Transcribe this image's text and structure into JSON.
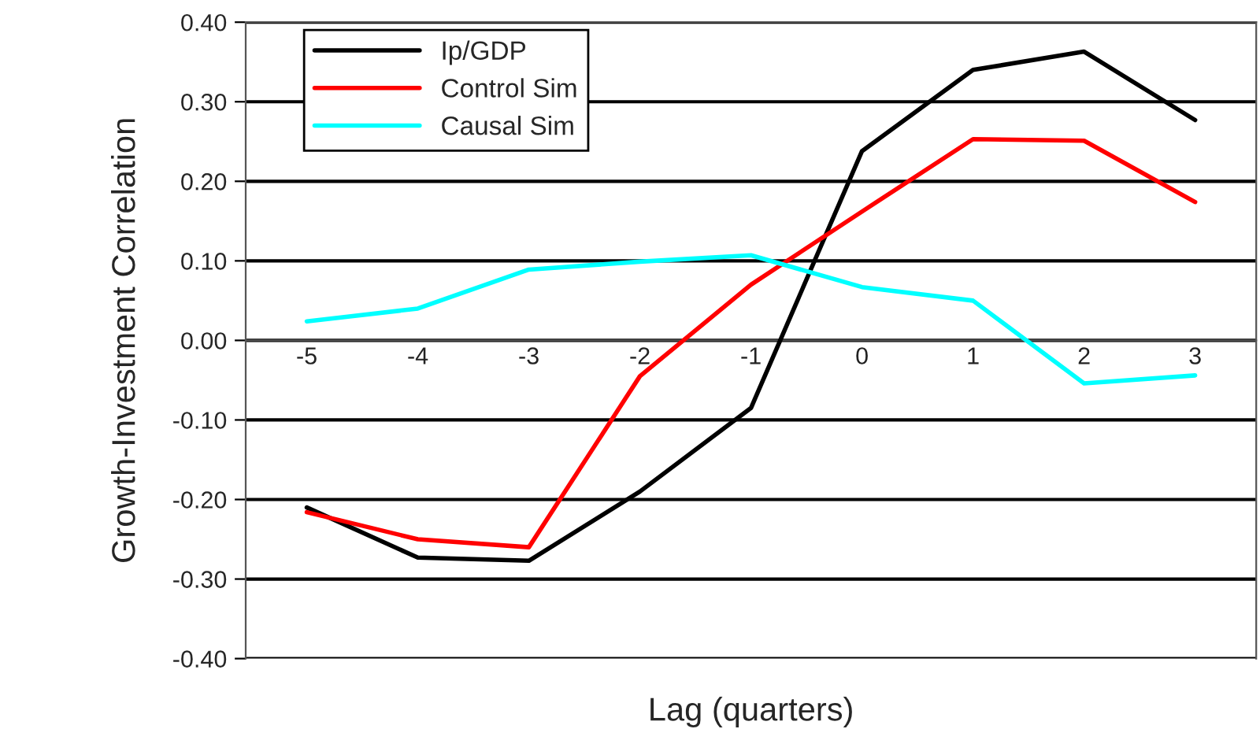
{
  "chart_data": {
    "type": "line",
    "xlabel": "Lag (quarters)",
    "ylabel": "Growth-Investment Correlation",
    "categories": [
      "-5",
      "-4",
      "-3",
      "-2",
      "-1",
      "0",
      "1",
      "2",
      "3"
    ],
    "series": [
      {
        "name": "Ip/GDP",
        "color": "#000000",
        "values": [
          -0.21,
          -0.273,
          -0.277,
          -0.19,
          -0.085,
          0.238,
          0.34,
          0.363,
          0.277
        ]
      },
      {
        "name": "Control Sim",
        "color": "#ff0000",
        "values": [
          -0.216,
          -0.25,
          -0.26,
          -0.045,
          0.07,
          0.162,
          0.253,
          0.251,
          0.174
        ]
      },
      {
        "name": "Causal Sim",
        "color": "#00ffff",
        "values": [
          0.024,
          0.04,
          0.089,
          0.099,
          0.107,
          0.067,
          0.05,
          -0.054,
          -0.044
        ]
      }
    ],
    "ylim": [
      -0.4,
      0.4
    ],
    "yticks": [
      {
        "value": -0.4,
        "label": "-0.40"
      },
      {
        "value": -0.3,
        "label": "-0.30"
      },
      {
        "value": -0.2,
        "label": "-0.20"
      },
      {
        "value": -0.1,
        "label": "-0.10"
      },
      {
        "value": 0,
        "label": "0.00"
      },
      {
        "value": 0.1,
        "label": "0.10"
      },
      {
        "value": 0.2,
        "label": "0.20"
      },
      {
        "value": 0.3,
        "label": "0.30"
      },
      {
        "value": 0.4,
        "label": "0.40"
      }
    ],
    "grid": "y",
    "legend": "top left",
    "marker": "none",
    "line_style": "solid"
  }
}
